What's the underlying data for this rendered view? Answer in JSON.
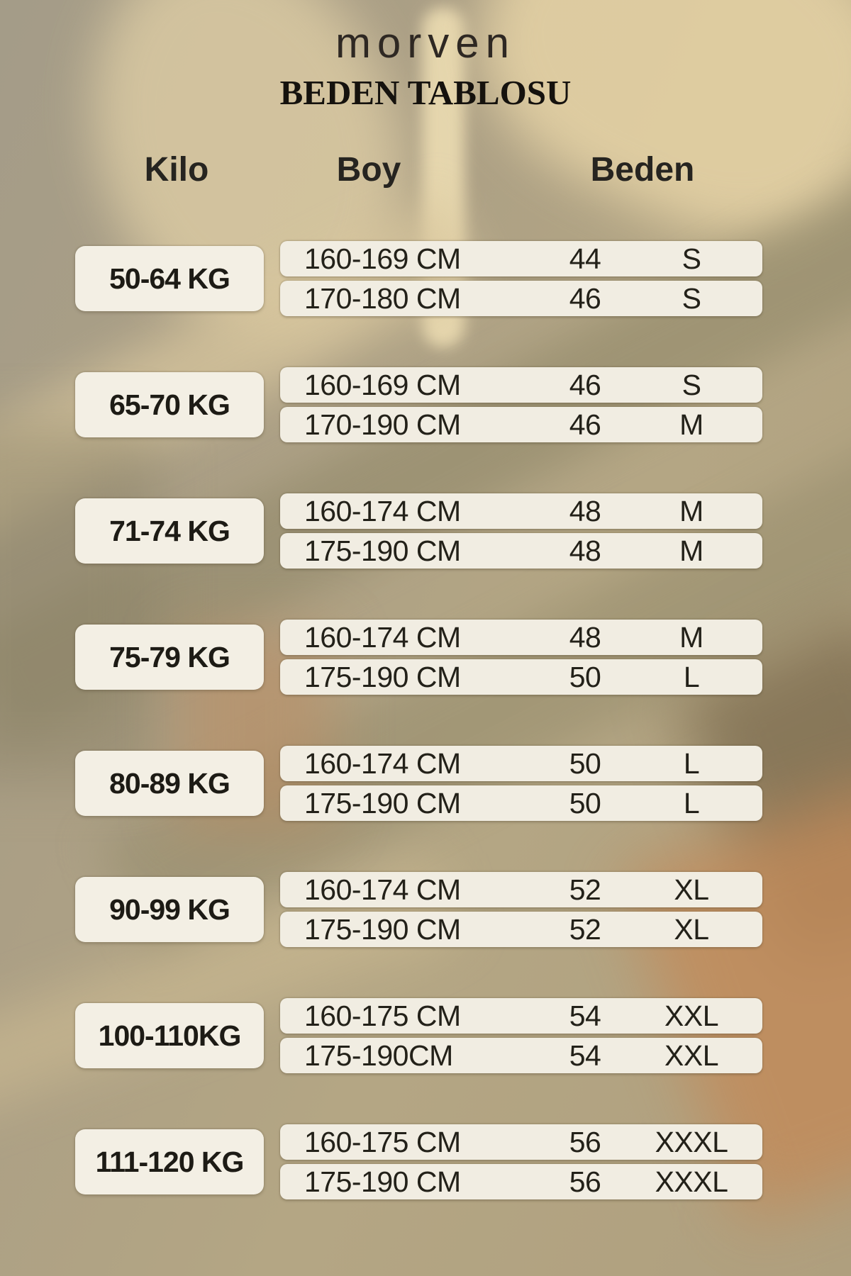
{
  "brand": "morven",
  "title": "BEDEN TABLOSU",
  "header": {
    "kilo": "Kilo",
    "boy": "Boy",
    "beden": "Beden"
  },
  "groups": [
    {
      "kilo": "50-64 KG",
      "rows": [
        {
          "boy": "160-169 CM",
          "size": "44",
          "label": "S"
        },
        {
          "boy": "170-180 CM",
          "size": "46",
          "label": "S"
        }
      ]
    },
    {
      "kilo": "65-70 KG",
      "rows": [
        {
          "boy": "160-169 CM",
          "size": "46",
          "label": "S"
        },
        {
          "boy": "170-190 CM",
          "size": "46",
          "label": "M"
        }
      ]
    },
    {
      "kilo": "71-74 KG",
      "rows": [
        {
          "boy": "160-174 CM",
          "size": "48",
          "label": "M"
        },
        {
          "boy": "175-190 CM",
          "size": "48",
          "label": "M"
        }
      ]
    },
    {
      "kilo": "75-79 KG",
      "rows": [
        {
          "boy": "160-174 CM",
          "size": "48",
          "label": "M"
        },
        {
          "boy": "175-190 CM",
          "size": "50",
          "label": "L"
        }
      ]
    },
    {
      "kilo": "80-89 KG",
      "rows": [
        {
          "boy": "160-174 CM",
          "size": "50",
          "label": "L"
        },
        {
          "boy": "175-190 CM",
          "size": "50",
          "label": "L"
        }
      ]
    },
    {
      "kilo": "90-99 KG",
      "rows": [
        {
          "boy": "160-174 CM",
          "size": "52",
          "label": "XL"
        },
        {
          "boy": "175-190 CM",
          "size": "52",
          "label": "XL"
        }
      ]
    },
    {
      "kilo": "100-110KG",
      "rows": [
        {
          "boy": "160-175 CM",
          "size": "54",
          "label": "XXL"
        },
        {
          "boy": "175-190CM",
          "size": "54",
          "label": "XXL"
        }
      ]
    },
    {
      "kilo": "111-120 KG",
      "rows": [
        {
          "boy": "160-175 CM",
          "size": "56",
          "label": "XXXL"
        },
        {
          "boy": "175-190 CM",
          "size": "56",
          "label": "XXXL"
        }
      ]
    }
  ],
  "chart_data": {
    "type": "table",
    "title": "BEDEN TABLOSU",
    "brand": "morven",
    "columns": [
      "Kilo",
      "Boy",
      "Beden (number)",
      "Beden (letter)"
    ],
    "rows": [
      [
        "50-64 KG",
        "160-169 CM",
        "44",
        "S"
      ],
      [
        "50-64 KG",
        "170-180 CM",
        "46",
        "S"
      ],
      [
        "65-70 KG",
        "160-169 CM",
        "46",
        "S"
      ],
      [
        "65-70 KG",
        "170-190 CM",
        "46",
        "M"
      ],
      [
        "71-74 KG",
        "160-174 CM",
        "48",
        "M"
      ],
      [
        "71-74 KG",
        "175-190 CM",
        "48",
        "M"
      ],
      [
        "75-79 KG",
        "160-174 CM",
        "48",
        "M"
      ],
      [
        "75-79 KG",
        "175-190 CM",
        "50",
        "L"
      ],
      [
        "80-89 KG",
        "160-174 CM",
        "50",
        "L"
      ],
      [
        "80-89 KG",
        "175-190 CM",
        "50",
        "L"
      ],
      [
        "90-99 KG",
        "160-174 CM",
        "52",
        "XL"
      ],
      [
        "90-99 KG",
        "175-190 CM",
        "52",
        "XL"
      ],
      [
        "100-110KG",
        "160-175 CM",
        "54",
        "XXL"
      ],
      [
        "100-110KG",
        "175-190CM",
        "54",
        "XXL"
      ],
      [
        "111-120 KG",
        "160-175 CM",
        "56",
        "XXXL"
      ],
      [
        "111-120 KG",
        "175-190 CM",
        "56",
        "XXXL"
      ]
    ]
  },
  "colors": {
    "background_tan": "#b0a385",
    "panel_cream": "#f1ede2",
    "text_dark": "#232119",
    "accent_peach": "#c28a59",
    "accent_olive": "#8f8768",
    "accent_cream": "#e6d3a6"
  }
}
